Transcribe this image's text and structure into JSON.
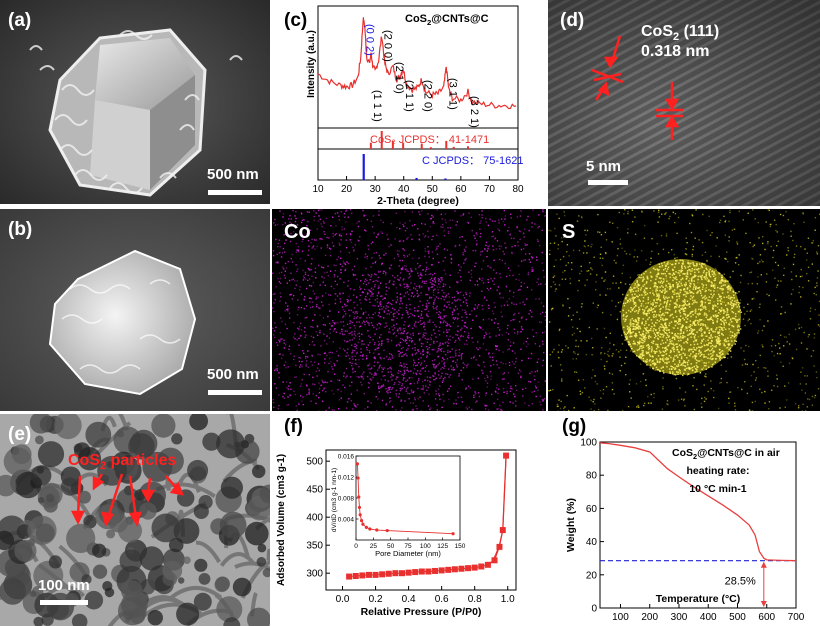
{
  "panels": {
    "a": {
      "label": "(a)",
      "scale": "500 nm"
    },
    "b": {
      "label": "(b)",
      "scale": "500 nm"
    },
    "co": {
      "label": "Co"
    },
    "s": {
      "label": "S"
    },
    "d": {
      "label": "(d)",
      "title_main": "CoS",
      "title_sub": "2",
      "title_rest": " (111)",
      "spacing": "0.318 nm",
      "scale": "5 nm"
    },
    "e": {
      "label": "(e)",
      "annotation_main": "CoS",
      "annotation_sub": "2",
      "annotation_rest": " particles",
      "scale": "100 nm"
    }
  },
  "colors": {
    "xrd_red": "#e8302e",
    "xrd_blue": "#1a1ae0",
    "bet_red": "#e8302e",
    "tga_red": "#e84040",
    "tga_dash": "#2020d0",
    "co_dots": "#d020d8",
    "s_dots": "#e8e020"
  },
  "chart_data": [
    {
      "id": "c",
      "type": "line",
      "panel_label": "(c)",
      "title_main": "CoS",
      "title_sub": "2",
      "title_rest": "@CNTs@C",
      "xlabel": "2-Theta (degree)",
      "ylabel": "Intensity (a.u.)",
      "xlim": [
        10,
        80
      ],
      "xticks": [
        10,
        20,
        30,
        40,
        50,
        60,
        70,
        80
      ],
      "peak_labels": [
        {
          "x": 26,
          "text": "(0 0 2)",
          "color": "blue"
        },
        {
          "x": 28.5,
          "text": "(1 1 1)"
        },
        {
          "x": 32.3,
          "text": "(2 0 0)"
        },
        {
          "x": 36.2,
          "text": "(2 1 0)"
        },
        {
          "x": 39.8,
          "text": "(2 1 1)"
        },
        {
          "x": 46.3,
          "text": "(2 2 0)"
        },
        {
          "x": 54.9,
          "text": "(3 1 1)"
        },
        {
          "x": 62.5,
          "text": "(3 2 1)"
        }
      ],
      "pattern": {
        "x": [
          10,
          14,
          18,
          20,
          22,
          24,
          25,
          25.8,
          26.4,
          27,
          28,
          28.6,
          29.2,
          30,
          31.2,
          32.3,
          33.4,
          34.5,
          36.2,
          37.5,
          38.5,
          39.8,
          41,
          43,
          45,
          46.3,
          47.6,
          50,
          52,
          54,
          54.9,
          55.8,
          57,
          60,
          62.5,
          64,
          68,
          72,
          76,
          80
        ],
        "y": [
          0.45,
          0.38,
          0.34,
          0.33,
          0.34,
          0.42,
          0.62,
          0.98,
          0.9,
          0.62,
          0.55,
          0.65,
          0.52,
          0.48,
          0.58,
          0.82,
          0.55,
          0.45,
          0.52,
          0.4,
          0.42,
          0.5,
          0.35,
          0.3,
          0.32,
          0.4,
          0.28,
          0.25,
          0.26,
          0.32,
          0.52,
          0.3,
          0.22,
          0.2,
          0.28,
          0.18,
          0.16,
          0.15,
          0.15,
          0.14
        ]
      },
      "reference_red": {
        "label": "CoS₂ JCPDS： 41-1471",
        "x": [
          28.5,
          32.3,
          36.2,
          39.8,
          46.3,
          49.5,
          54.9,
          57.5,
          62.5
        ],
        "h": [
          0.35,
          1.0,
          0.45,
          0.35,
          0.3,
          0.1,
          0.45,
          0.12,
          0.15
        ]
      },
      "reference_blue": {
        "label": "C JCPDS： 75-1621",
        "x": [
          26,
          44.5,
          54.6
        ],
        "h": [
          1.0,
          0.08,
          0.06
        ]
      }
    },
    {
      "id": "f",
      "type": "scatter",
      "panel_label": "(f)",
      "xlabel": "Relative Pressure (P/P0)",
      "ylabel": "Adsorbed Volume (cm3 g-1)",
      "xlim": [
        -0.1,
        1.05
      ],
      "ylim": [
        270,
        520
      ],
      "xticks": [
        "0.0",
        "0.2",
        "0.4",
        "0.6",
        "0.8",
        "1.0"
      ],
      "yticks": [
        300,
        350,
        400,
        450,
        500
      ],
      "adsorption": {
        "x": [
          0.04,
          0.08,
          0.12,
          0.16,
          0.2,
          0.24,
          0.28,
          0.32,
          0.36,
          0.4,
          0.44,
          0.48,
          0.52,
          0.56,
          0.6,
          0.64,
          0.68,
          0.72,
          0.76,
          0.8,
          0.84,
          0.88,
          0.92,
          0.95,
          0.97,
          0.99
        ],
        "y": [
          294,
          295,
          296,
          297,
          297,
          298,
          299,
          300,
          300,
          301,
          302,
          303,
          303,
          304,
          305,
          306,
          307,
          308,
          309,
          310,
          312,
          315,
          323,
          347,
          377,
          510
        ]
      },
      "desorption": {
        "x": [
          0.99,
          0.97,
          0.95,
          0.93,
          0.91,
          0.88
        ],
        "y": [
          510,
          377,
          350,
          335,
          322,
          315
        ]
      },
      "inset": {
        "xlabel": "Pore Diameter (nm)",
        "ylabel": "dV/dD (cm3 g-1 nm-1)",
        "xlim": [
          0,
          150
        ],
        "ylim": [
          0,
          0.016
        ],
        "xticks": [
          0,
          25,
          50,
          75,
          100,
          125,
          150
        ],
        "yticks": [
          "0.004",
          "0.008",
          "0.012",
          "0.016"
        ],
        "x": [
          2,
          3,
          4,
          5,
          6,
          8,
          10,
          15,
          20,
          30,
          45,
          140
        ],
        "y": [
          0.0145,
          0.0118,
          0.0082,
          0.0062,
          0.0048,
          0.0037,
          0.003,
          0.0024,
          0.0021,
          0.0019,
          0.0018,
          0.0012
        ]
      }
    },
    {
      "id": "g",
      "type": "line",
      "panel_label": "(g)",
      "xlabel": "Temperature (°C)",
      "ylabel": "Weight (%)",
      "xlim": [
        30,
        700
      ],
      "ylim": [
        0,
        100
      ],
      "xticks": [
        100,
        200,
        300,
        400,
        500,
        600,
        700
      ],
      "yticks": [
        0,
        20,
        40,
        60,
        80,
        100
      ],
      "annotation_line1_main": "CoS",
      "annotation_line1_sub": "2",
      "annotation_line1_rest": "@CNTs@C in air",
      "annotation_line2": "heating rate:",
      "annotation_line3": "10 °C min-1",
      "residual_label": "28.5%",
      "residual": 28.5,
      "x": [
        30,
        60,
        100,
        150,
        200,
        230,
        260,
        300,
        350,
        400,
        450,
        500,
        540,
        560,
        575,
        590,
        600,
        650,
        700
      ],
      "y": [
        99.5,
        99,
        98,
        96.5,
        94,
        89,
        84,
        79,
        73,
        67.5,
        62,
        56,
        50,
        44,
        34,
        30,
        29,
        28.7,
        28.5
      ]
    }
  ]
}
